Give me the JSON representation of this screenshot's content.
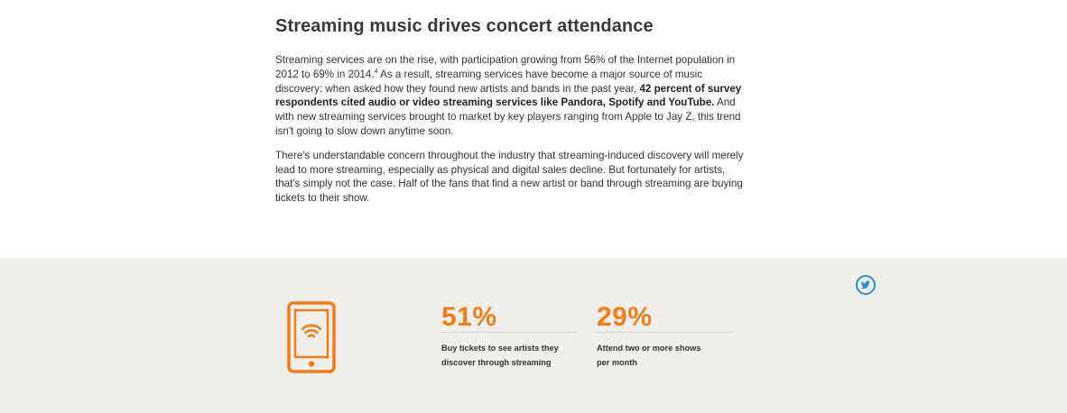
{
  "article": {
    "title": "Streaming music drives concert attendance",
    "p1_a": "Streaming services are on the rise, with participation growing from 56% of the Internet population in 2012 to 69% in 2014.",
    "p1_sup": "4",
    "p1_b": " As a result, streaming services have become a major source of music discovery: when asked how they found new artists and bands in the past year, ",
    "p1_bold": "42 percent of survey respondents cited audio or video streaming services like Pandora, Spotify and YouTube.",
    "p1_c": " And with new streaming services brought to market by key players ranging from Apple to Jay Z, this trend isn't going to slow down anytime soon.",
    "p2": "There's understandable concern throughout the industry that streaming-induced discovery will merely lead to more streaming, especially as physical and digital sales decline. But fortunately for artists, that's simply not the case. Half of the fans that find a new artist or band through streaming are buying tickets to their show."
  },
  "stats": [
    {
      "value": "51%",
      "desc_line1": "Buy tickets to see artists they",
      "desc_line2": "discover through streaming"
    },
    {
      "value": "29%",
      "desc_line1": "Attend two or more shows",
      "desc_line2": "per month"
    }
  ],
  "icons": {
    "phone": "smartphone-wifi-icon",
    "share": "twitter-icon"
  },
  "colors": {
    "accent": "#f07d1a",
    "twitter": "#2a8fc7",
    "band_background": "#f1efeb"
  }
}
